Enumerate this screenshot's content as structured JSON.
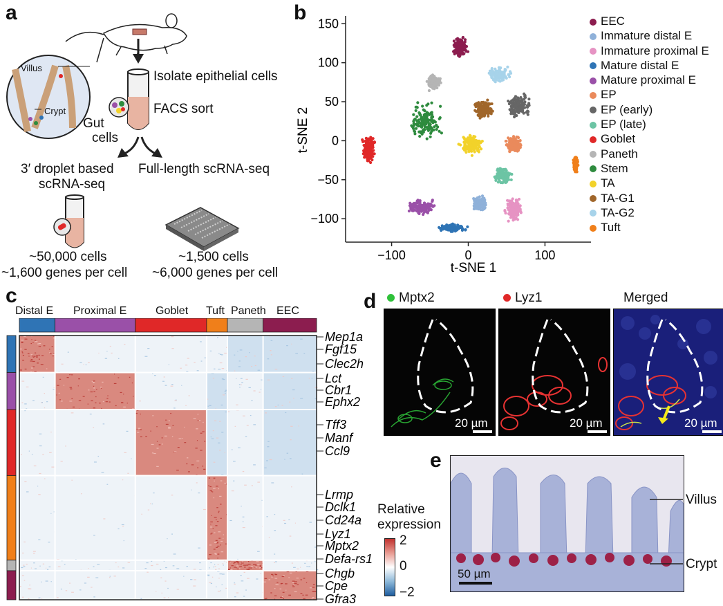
{
  "panels": {
    "a": "a",
    "b": "b",
    "c": "c",
    "d": "d",
    "e": "e"
  },
  "panel_a": {
    "villus": "Villus",
    "crypt": "Crypt",
    "gut_cells_1": "Gut",
    "gut_cells_2": "cells",
    "isolate": "Isolate epithelial cells",
    "facs": "FACS sort",
    "droplet_1": "3′ droplet based",
    "droplet_2": "scRNA-seq",
    "fulllength": "Full-length scRNA-seq",
    "droplet_cells": "~50,000 cells",
    "droplet_genes": "~1,600 genes per cell",
    "fl_cells": "~1,500 cells",
    "fl_genes": "~6,000 genes per cell"
  },
  "chart_data": [
    {
      "type": "scatter",
      "xlabel": "t-SNE 1",
      "ylabel": "t-SNE 2",
      "xlim": [
        -160,
        160
      ],
      "ylim": [
        -130,
        160
      ],
      "xticks": [
        -100,
        0,
        100
      ],
      "yticks": [
        -100,
        -50,
        0,
        50,
        100,
        150
      ],
      "xtick_labels": [
        "−100",
        "0",
        "100"
      ],
      "ytick_labels": [
        "−100",
        "−50",
        "0",
        "50",
        "100",
        "150"
      ],
      "legend_position": "right",
      "series": [
        {
          "name": "EEC",
          "color": "#8c1d4f",
          "center": [
            -10,
            120
          ],
          "spread": [
            12,
            15
          ]
        },
        {
          "name": "Immature distal E",
          "color": "#8fb1d9",
          "center": [
            15,
            -80
          ],
          "spread": [
            10,
            12
          ]
        },
        {
          "name": "Immature proximal E",
          "color": "#e693c3",
          "center": [
            60,
            -88
          ],
          "spread": [
            14,
            20
          ]
        },
        {
          "name": "Mature distal E",
          "color": "#2f74b5",
          "center": [
            -20,
            -112
          ],
          "spread": [
            20,
            6
          ]
        },
        {
          "name": "Mature proximal E",
          "color": "#9a50a8",
          "center": [
            -60,
            -85
          ],
          "spread": [
            22,
            12
          ]
        },
        {
          "name": "EP",
          "color": "#ea8a5c",
          "center": [
            60,
            -5
          ],
          "spread": [
            14,
            12
          ]
        },
        {
          "name": "EP (early)",
          "color": "#666666",
          "center": [
            65,
            45
          ],
          "spread": [
            18,
            18
          ]
        },
        {
          "name": "EP (late)",
          "color": "#6cc4a4",
          "center": [
            45,
            -45
          ],
          "spread": [
            14,
            12
          ]
        },
        {
          "name": "Goblet",
          "color": "#e02828",
          "center": [
            -130,
            -10
          ],
          "spread": [
            10,
            22
          ]
        },
        {
          "name": "Paneth",
          "color": "#b5b5b5",
          "center": [
            -45,
            75
          ],
          "spread": [
            12,
            12
          ]
        },
        {
          "name": "Stem",
          "color": "#2e8b3e",
          "center": [
            -55,
            25
          ],
          "spread": [
            24,
            30
          ]
        },
        {
          "name": "TA",
          "color": "#f2d22a",
          "center": [
            5,
            -5
          ],
          "spread": [
            18,
            15
          ]
        },
        {
          "name": "TA-G1",
          "color": "#a0662a",
          "center": [
            20,
            40
          ],
          "spread": [
            16,
            14
          ]
        },
        {
          "name": "TA-G2",
          "color": "#a7d3ea",
          "center": [
            40,
            85
          ],
          "spread": [
            18,
            12
          ]
        },
        {
          "name": "Tuft",
          "color": "#f07f1a",
          "center": [
            140,
            -30
          ],
          "spread": [
            4,
            12
          ]
        }
      ]
    },
    {
      "type": "heatmap",
      "column_groups": [
        {
          "name": "Distal E",
          "color": "#2f74b5",
          "fraction": 0.12
        },
        {
          "name": "Proximal E",
          "color": "#9a50a8",
          "fraction": 0.27
        },
        {
          "name": "Goblet",
          "color": "#e02828",
          "fraction": 0.24
        },
        {
          "name": "Tuft",
          "color": "#f07f1a",
          "fraction": 0.07
        },
        {
          "name": "Paneth",
          "color": "#b5b5b5",
          "fraction": 0.12
        },
        {
          "name": "EEC",
          "color": "#8c1d4f",
          "fraction": 0.18
        }
      ],
      "row_groups": [
        {
          "name": "Distal E",
          "color": "#2f74b5",
          "fraction": 0.14
        },
        {
          "name": "Proximal E",
          "color": "#9a50a8",
          "fraction": 0.14
        },
        {
          "name": "Goblet",
          "color": "#e02828",
          "fraction": 0.25
        },
        {
          "name": "Tuft",
          "color": "#f07f1a",
          "fraction": 0.32
        },
        {
          "name": "Paneth",
          "color": "#b5b5b5",
          "fraction": 0.04
        },
        {
          "name": "EEC",
          "color": "#8c1d4f",
          "fraction": 0.11
        }
      ],
      "gene_labels": [
        "Mep1a",
        "Fgf15",
        "Clec2h",
        "Lct",
        "Cbr1",
        "Ephx2",
        "Tff3",
        "Manf",
        "Ccl9",
        "Lrmp",
        "Dclk1",
        "Cd24a",
        "Lyz1",
        "Mptx2",
        "Defa-rs1",
        "Chgb",
        "Cpe",
        "Gfra3"
      ],
      "colorbar": {
        "title_1": "Relative",
        "title_2": "expression",
        "ticks": [
          "2",
          "0",
          "−2"
        ],
        "range": [
          -2,
          2
        ]
      }
    }
  ],
  "panel_d": {
    "mptx2": "Mptx2",
    "lyz1": "Lyz1",
    "merged": "Merged",
    "scale": "20 µm"
  },
  "panel_e": {
    "villus": "Villus",
    "crypt": "Crypt",
    "scale": "50 µm"
  }
}
